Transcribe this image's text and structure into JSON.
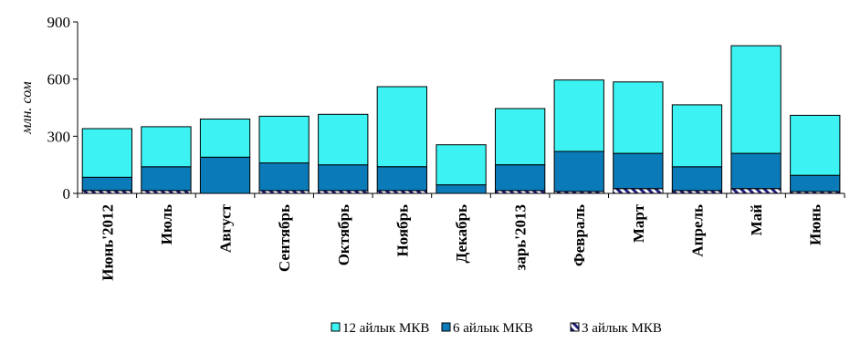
{
  "chart_data": {
    "type": "bar",
    "stacked": true,
    "ylabel": "млн. сом",
    "ylim": [
      0,
      900
    ],
    "yticks": [
      0,
      300,
      600,
      900
    ],
    "grid": false,
    "legend_position": "bottom",
    "categories": [
      "Июнь'2012",
      "Июль",
      "Август",
      "Сентябрь",
      "Октябрь",
      "Ноябрь",
      "Декабрь",
      "зарь'2013",
      "Февраль",
      "Март",
      "Апрель",
      "Май",
      "Июнь"
    ],
    "series": [
      {
        "name": "3 айлык МКВ",
        "color": "#1f1f7a",
        "pattern": "hatched",
        "values": [
          15,
          15,
          0,
          15,
          15,
          15,
          0,
          15,
          10,
          25,
          15,
          25,
          10
        ]
      },
      {
        "name": "6 айлык МКВ",
        "color": "#0a7ab8",
        "values": [
          70,
          125,
          190,
          145,
          135,
          125,
          45,
          135,
          210,
          185,
          125,
          185,
          85
        ]
      },
      {
        "name": "12 айлык МКВ",
        "color": "#3cf2f2",
        "values": [
          255,
          210,
          200,
          245,
          265,
          420,
          210,
          295,
          375,
          375,
          325,
          565,
          315
        ]
      }
    ],
    "legend_order": [
      "12 айлык МКВ",
      "6 айлык МКВ",
      "3 айлык МКВ"
    ]
  }
}
